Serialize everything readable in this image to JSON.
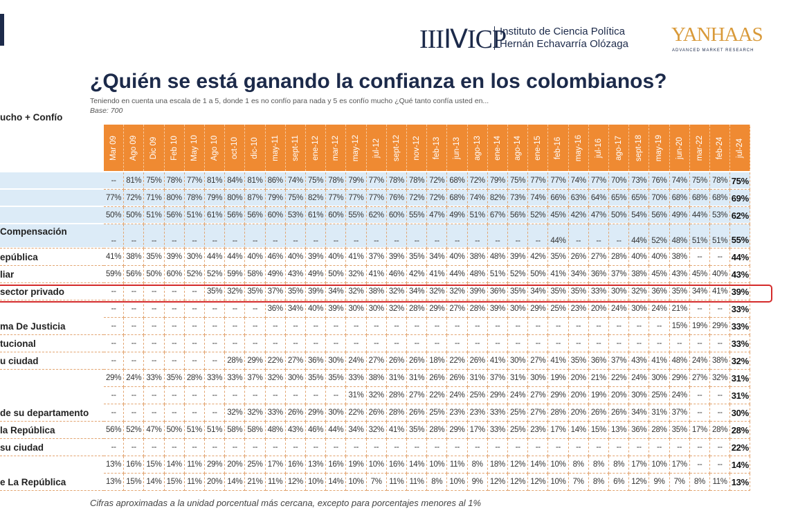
{
  "header": {
    "logo_icp": "IIIⅣICP",
    "institute_line1": "Instituto de Ciencia Política",
    "institute_line2": "Hernán Echavarría Olózaga",
    "logo_yanhaas": "YANHAAS",
    "yanhaas_tagline": "ADVANCED MARKET RESEARCH"
  },
  "title": "¿Quién se está ganando la confianza en los colombianos?",
  "subtitle": "Teniendo en cuenta una escala de 1 a 5, donde 1 es no confío para nada y 5 es confío mucho ¿Qué tanto confía usted en...",
  "base": "Base: 700",
  "left_header": "ucho + Confío",
  "table": {
    "columns": [
      "Mar 09",
      "Ago 09",
      "Dic 09",
      "Feb 10",
      "May 10",
      "Ago 10",
      "oct-10",
      "dic-10",
      "may-11",
      "sept-11",
      "ene-12",
      "mar-12",
      "may-12",
      "jul-12",
      "sept-12",
      "nov-12",
      "feb-13",
      "jun-13",
      "ago-13",
      "ene-14",
      "ago-14",
      "ene-15",
      "feb-16",
      "may-16",
      "jul-16",
      "ago-17",
      "sept-18",
      "may-19",
      "jun-20",
      "mar-22",
      "feb-24",
      "jul-24"
    ],
    "rows": [
      {
        "label": null,
        "cells": [
          "--",
          "81%",
          "75%",
          "78%",
          "77%",
          "81%",
          "84%",
          "81%",
          "86%",
          "74%",
          "75%",
          "78%",
          "79%",
          "77%",
          "78%",
          "78%",
          "72%",
          "68%",
          "72%",
          "79%",
          "75%",
          "77%",
          "77%",
          "74%",
          "77%",
          "70%",
          "73%",
          "76%",
          "74%",
          "75%",
          "78%",
          "75%"
        ]
      },
      {
        "label": null,
        "cells": [
          "77%",
          "72%",
          "71%",
          "80%",
          "78%",
          "79%",
          "80%",
          "87%",
          "79%",
          "75%",
          "82%",
          "77%",
          "77%",
          "77%",
          "76%",
          "72%",
          "72%",
          "68%",
          "74%",
          "82%",
          "73%",
          "74%",
          "66%",
          "63%",
          "64%",
          "65%",
          "65%",
          "70%",
          "68%",
          "68%",
          "68%",
          "69%"
        ]
      },
      {
        "label": null,
        "cells": [
          "50%",
          "50%",
          "51%",
          "56%",
          "51%",
          "61%",
          "56%",
          "56%",
          "60%",
          "53%",
          "61%",
          "60%",
          "55%",
          "62%",
          "60%",
          "55%",
          "47%",
          "49%",
          "51%",
          "67%",
          "56%",
          "52%",
          "45%",
          "42%",
          "47%",
          "50%",
          "54%",
          "56%",
          "49%",
          "44%",
          "53%",
          "62%"
        ]
      },
      {
        "label": "Compensación",
        "cells": [
          "--",
          "--",
          "--",
          "--",
          "--",
          "--",
          "--",
          "--",
          "--",
          "--",
          "--",
          "--",
          "--",
          "--",
          "--",
          "--",
          "--",
          "--",
          "--",
          "--",
          "--",
          "--",
          "44%",
          "--",
          "--",
          "--",
          "44%",
          "52%",
          "48%",
          "51%",
          "51%",
          "55%"
        ]
      },
      {
        "label": "epública",
        "cells": [
          "41%",
          "38%",
          "35%",
          "39%",
          "30%",
          "44%",
          "44%",
          "40%",
          "46%",
          "40%",
          "39%",
          "40%",
          "41%",
          "37%",
          "39%",
          "35%",
          "34%",
          "40%",
          "38%",
          "48%",
          "39%",
          "42%",
          "35%",
          "26%",
          "27%",
          "28%",
          "40%",
          "40%",
          "38%",
          "--",
          "--",
          "44%"
        ]
      },
      {
        "label": "liar",
        "cells": [
          "59%",
          "56%",
          "50%",
          "60%",
          "52%",
          "52%",
          "59%",
          "58%",
          "49%",
          "43%",
          "49%",
          "50%",
          "32%",
          "41%",
          "46%",
          "42%",
          "41%",
          "44%",
          "48%",
          "51%",
          "52%",
          "50%",
          "41%",
          "34%",
          "36%",
          "37%",
          "38%",
          "45%",
          "43%",
          "45%",
          "40%",
          "43%"
        ]
      },
      {
        "label": "sector privado",
        "cells": [
          "--",
          "--",
          "--",
          "--",
          "--",
          "35%",
          "32%",
          "35%",
          "37%",
          "35%",
          "39%",
          "34%",
          "32%",
          "38%",
          "32%",
          "34%",
          "32%",
          "32%",
          "39%",
          "36%",
          "35%",
          "34%",
          "35%",
          "35%",
          "33%",
          "30%",
          "32%",
          "36%",
          "35%",
          "34%",
          "41%",
          "39%"
        ]
      },
      {
        "label": null,
        "cells": [
          "--",
          "--",
          "--",
          "--",
          "--",
          "--",
          "--",
          "--",
          "36%",
          "34%",
          "40%",
          "39%",
          "30%",
          "30%",
          "32%",
          "28%",
          "29%",
          "27%",
          "28%",
          "39%",
          "30%",
          "29%",
          "25%",
          "23%",
          "20%",
          "24%",
          "30%",
          "24%",
          "21%",
          "--",
          "--",
          "33%"
        ]
      },
      {
        "label": "ma De Justicia",
        "cells": [
          "--",
          "--",
          "--",
          "--",
          "--",
          "--",
          "--",
          "--",
          "--",
          "--",
          "--",
          "--",
          "--",
          "--",
          "--",
          "--",
          "--",
          "--",
          "--",
          "--",
          "--",
          "--",
          "--",
          "--",
          "--",
          "--",
          "--",
          "--",
          "15%",
          "19%",
          "29%",
          "33%"
        ]
      },
      {
        "label": "tucional",
        "cells": [
          "--",
          "--",
          "--",
          "--",
          "--",
          "--",
          "--",
          "--",
          "--",
          "--",
          "--",
          "--",
          "--",
          "--",
          "--",
          "--",
          "--",
          "--",
          "--",
          "--",
          "--",
          "--",
          "--",
          "--",
          "--",
          "--",
          "--",
          "--",
          "--",
          "--",
          "--",
          "33%"
        ]
      },
      {
        "label": "u ciudad",
        "cells": [
          "--",
          "--",
          "--",
          "--",
          "--",
          "--",
          "28%",
          "29%",
          "22%",
          "27%",
          "36%",
          "30%",
          "24%",
          "27%",
          "26%",
          "26%",
          "18%",
          "22%",
          "26%",
          "41%",
          "30%",
          "27%",
          "41%",
          "35%",
          "36%",
          "37%",
          "43%",
          "41%",
          "48%",
          "24%",
          "38%",
          "32%"
        ]
      },
      {
        "label": null,
        "cells": [
          "29%",
          "24%",
          "33%",
          "35%",
          "28%",
          "33%",
          "33%",
          "37%",
          "32%",
          "30%",
          "35%",
          "35%",
          "33%",
          "38%",
          "31%",
          "31%",
          "26%",
          "26%",
          "31%",
          "37%",
          "31%",
          "30%",
          "19%",
          "20%",
          "21%",
          "22%",
          "24%",
          "30%",
          "29%",
          "27%",
          "32%",
          "31%"
        ]
      },
      {
        "label": null,
        "cells": [
          "--",
          "--",
          "--",
          "--",
          "--",
          "--",
          "--",
          "--",
          "--",
          "--",
          "--",
          "--",
          "31%",
          "32%",
          "28%",
          "27%",
          "22%",
          "24%",
          "25%",
          "29%",
          "24%",
          "27%",
          "29%",
          "20%",
          "19%",
          "20%",
          "30%",
          "25%",
          "24%",
          "--",
          "--",
          "31%"
        ]
      },
      {
        "label": "de su departamento",
        "cells": [
          "--",
          "--",
          "--",
          "--",
          "--",
          "--",
          "32%",
          "32%",
          "33%",
          "26%",
          "29%",
          "30%",
          "22%",
          "26%",
          "28%",
          "26%",
          "25%",
          "23%",
          "23%",
          "33%",
          "25%",
          "27%",
          "28%",
          "20%",
          "26%",
          "26%",
          "34%",
          "31%",
          "37%",
          "--",
          "--",
          "30%"
        ]
      },
      {
        "label": "la República",
        "cells": [
          "56%",
          "52%",
          "47%",
          "50%",
          "51%",
          "51%",
          "58%",
          "58%",
          "48%",
          "43%",
          "46%",
          "44%",
          "34%",
          "32%",
          "41%",
          "35%",
          "28%",
          "29%",
          "17%",
          "33%",
          "25%",
          "23%",
          "17%",
          "14%",
          "15%",
          "13%",
          "36%",
          "28%",
          "35%",
          "17%",
          "28%",
          "28%"
        ]
      },
      {
        "label": "su ciudad",
        "cells": [
          "--",
          "--",
          "--",
          "--",
          "--",
          "--",
          "--",
          "--",
          "--",
          "--",
          "--",
          "--",
          "--",
          "--",
          "--",
          "--",
          "--",
          "--",
          "--",
          "--",
          "--",
          "--",
          "--",
          "--",
          "--",
          "--",
          "--",
          "--",
          "--",
          "--",
          "--",
          "22%"
        ]
      },
      {
        "label": null,
        "cells": [
          "13%",
          "16%",
          "15%",
          "14%",
          "11%",
          "29%",
          "20%",
          "25%",
          "17%",
          "16%",
          "13%",
          "16%",
          "19%",
          "10%",
          "16%",
          "14%",
          "10%",
          "11%",
          "8%",
          "18%",
          "12%",
          "14%",
          "10%",
          "8%",
          "8%",
          "8%",
          "17%",
          "10%",
          "17%",
          "--",
          "--",
          "14%"
        ]
      },
      {
        "label": "e La República",
        "cells": [
          "13%",
          "15%",
          "14%",
          "15%",
          "11%",
          "20%",
          "14%",
          "21%",
          "11%",
          "12%",
          "10%",
          "14%",
          "10%",
          "7%",
          "11%",
          "11%",
          "8%",
          "10%",
          "9%",
          "12%",
          "12%",
          "12%",
          "10%",
          "7%",
          "8%",
          "6%",
          "12%",
          "9%",
          "7%",
          "8%",
          "11%",
          "13%"
        ]
      }
    ]
  },
  "footnote": "Cifras aproximadas a la unidad porcentual más cercana, excepto para porcentajes menores al 1%"
}
